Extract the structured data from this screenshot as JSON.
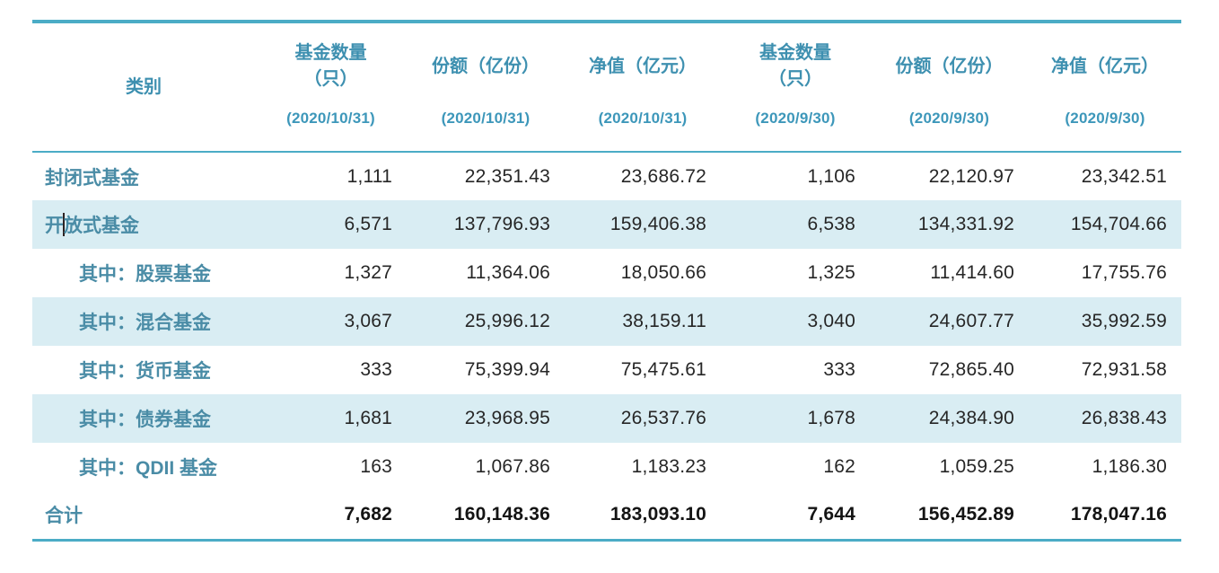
{
  "colors": {
    "accent_border": "#4BACC6",
    "shaded_row": "#D9EDF3",
    "header_label_text": "#3E90B0",
    "header_date_text": "#3D97BA",
    "category_text": "#4A8CA6",
    "number_text": "#262626"
  },
  "table": {
    "columns": [
      {
        "label": "类别",
        "date": ""
      },
      {
        "label": "基金数量\n（只）",
        "date": "(2020/10/31)"
      },
      {
        "label": "份额（亿份）",
        "date": "(2020/10/31)"
      },
      {
        "label": "净值（亿元）",
        "date": "(2020/10/31)"
      },
      {
        "label": "基金数量\n（只）",
        "date": "(2020/9/30)"
      },
      {
        "label": "份额（亿份）",
        "date": "(2020/9/30)"
      },
      {
        "label": "净值（亿元）",
        "date": "(2020/9/30)"
      }
    ],
    "rows": [
      {
        "category": "封闭式基金",
        "indent": false,
        "shaded": false,
        "total": false,
        "values": [
          "1,111",
          "22,351.43",
          "23,686.72",
          "1,106",
          "22,120.97",
          "23,342.51"
        ]
      },
      {
        "category": "开放式基金",
        "indent": false,
        "shaded": true,
        "total": false,
        "caret_after": 1,
        "values": [
          "6,571",
          "137,796.93",
          "159,406.38",
          "6,538",
          "134,331.92",
          "154,704.66"
        ]
      },
      {
        "category": "其中：股票基金",
        "indent": true,
        "shaded": false,
        "total": false,
        "values": [
          "1,327",
          "11,364.06",
          "18,050.66",
          "1,325",
          "11,414.60",
          "17,755.76"
        ]
      },
      {
        "category": "其中：混合基金",
        "indent": true,
        "shaded": true,
        "total": false,
        "values": [
          "3,067",
          "25,996.12",
          "38,159.11",
          "3,040",
          "24,607.77",
          "35,992.59"
        ]
      },
      {
        "category": "其中：货币基金",
        "indent": true,
        "shaded": false,
        "total": false,
        "values": [
          "333",
          "75,399.94",
          "75,475.61",
          "333",
          "72,865.40",
          "72,931.58"
        ]
      },
      {
        "category": "其中：债券基金",
        "indent": true,
        "shaded": true,
        "total": false,
        "values": [
          "1,681",
          "23,968.95",
          "26,537.76",
          "1,678",
          "24,384.90",
          "26,838.43"
        ]
      },
      {
        "category": "其中：QDII 基金",
        "indent": true,
        "shaded": false,
        "total": false,
        "values": [
          "163",
          "1,067.86",
          "1,183.23",
          "162",
          "1,059.25",
          "1,186.30"
        ]
      },
      {
        "category": "合计",
        "indent": false,
        "shaded": false,
        "total": true,
        "values": [
          "7,682",
          "160,148.36",
          "183,093.10",
          "7,644",
          "156,452.89",
          "178,047.16"
        ]
      }
    ]
  }
}
